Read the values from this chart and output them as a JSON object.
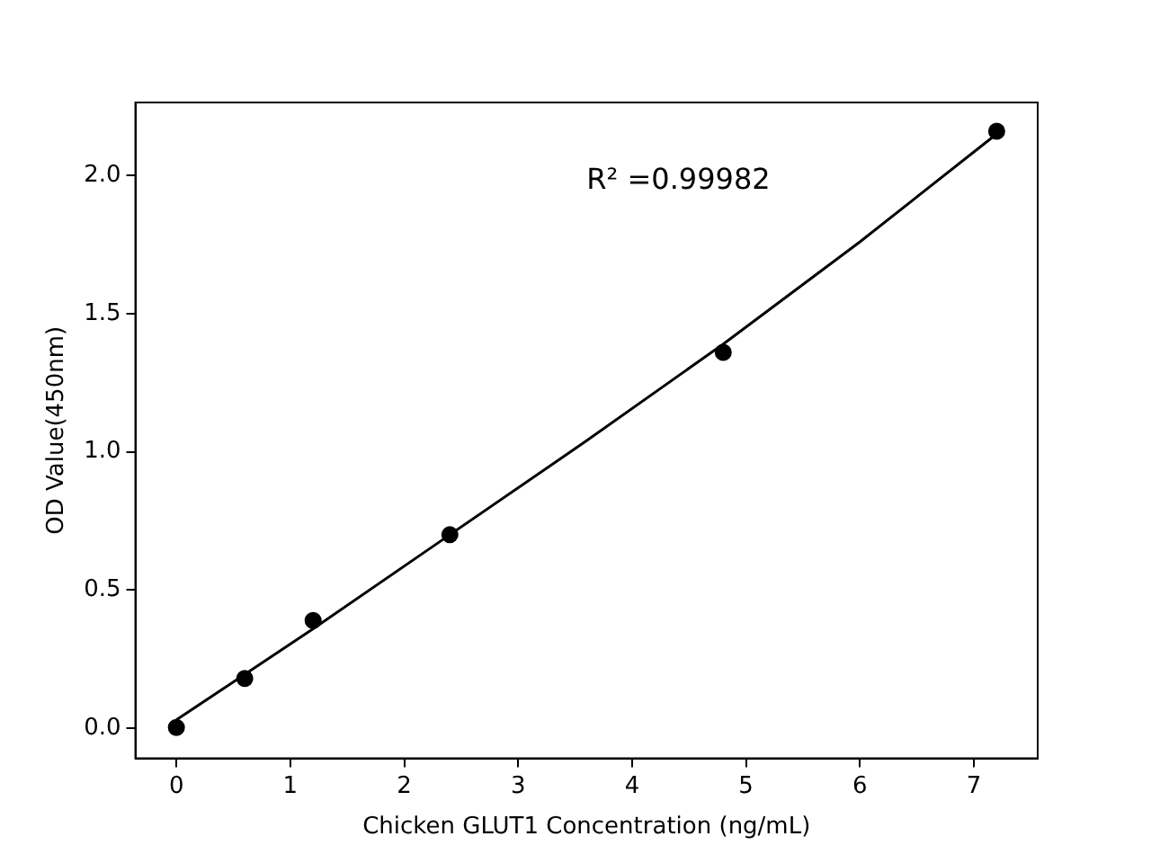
{
  "chart_data": {
    "type": "scatter",
    "xlabel": "Chicken GLUT1 Concentration (ng/mL)",
    "ylabel": "OD Value(450nm)",
    "x": [
      0,
      0.6,
      1.2,
      2.4,
      4.8,
      7.2
    ],
    "series": [
      {
        "type": "scatter",
        "color": "#000000",
        "marker": "circle",
        "values": [
          0.003,
          0.18,
          0.39,
          0.7,
          1.36,
          2.16
        ]
      },
      {
        "type": "line",
        "color": "#000000",
        "line_style": "solid",
        "marker": "none",
        "x": [
          0,
          1.2,
          2.4,
          3.6,
          4.8,
          6,
          7.2
        ],
        "values": [
          0.03,
          0.36,
          0.7,
          1.04,
          1.39,
          1.76,
          2.15
        ]
      }
    ],
    "annotations": [
      "R² =0.99982"
    ],
    "xlim": [
      -0.36,
      7.56
    ],
    "xticks": [
      0,
      1,
      2,
      3,
      4,
      5,
      6,
      7
    ],
    "ylim": [
      -0.109,
      2.264
    ],
    "yticks": [
      {
        "value": 0,
        "label": "0.0"
      },
      {
        "value": 0.5,
        "label": "0.5"
      },
      {
        "value": 1,
        "label": "1.0"
      },
      {
        "value": 1.5,
        "label": "1.5"
      },
      {
        "value": 2,
        "label": "2.0"
      }
    ],
    "grid": false,
    "legend": false
  }
}
